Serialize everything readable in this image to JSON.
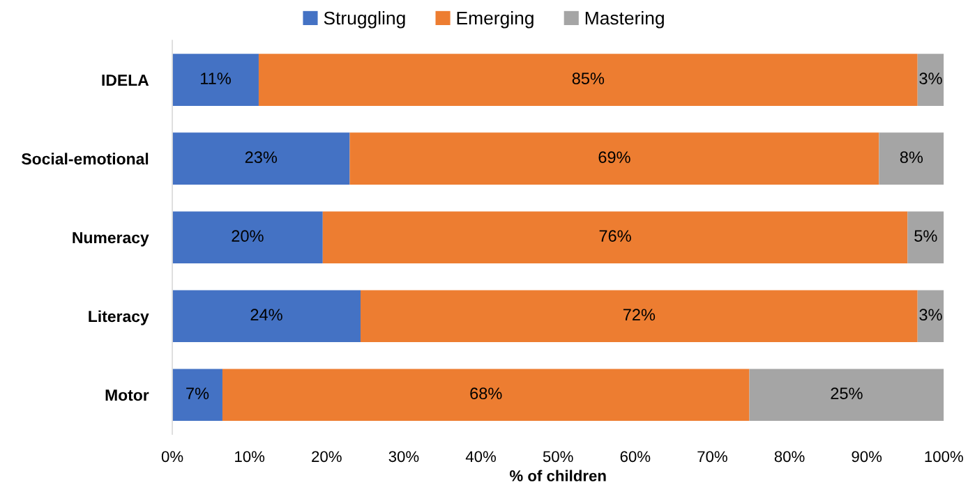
{
  "chart_data": {
    "type": "bar",
    "orientation": "horizontal",
    "stacked": true,
    "categories": [
      "IDELA",
      "Social-emotional",
      "Numeracy",
      "Literacy",
      "Motor"
    ],
    "series": [
      {
        "name": "Struggling",
        "color": "#4472c4",
        "values": [
          11.2,
          23.0,
          19.5,
          24.4,
          6.5
        ],
        "value_labels": [
          "11%",
          "23%",
          "20%",
          "24%",
          "7%"
        ]
      },
      {
        "name": "Emerging",
        "color": "#ed7d31",
        "values": [
          85.4,
          68.6,
          75.8,
          72.2,
          68.3
        ],
        "value_labels": [
          "85%",
          "69%",
          "76%",
          "72%",
          "68%"
        ]
      },
      {
        "name": "Mastering",
        "color": "#a5a5a5",
        "values": [
          3.4,
          8.4,
          4.7,
          3.4,
          25.2
        ],
        "value_labels": [
          "3%",
          "8%",
          "5%",
          "3%",
          "25%"
        ]
      }
    ],
    "xlabel": "% of children",
    "xlim": [
      0,
      100
    ],
    "xticks": [
      {
        "value": 0,
        "label": "0%"
      },
      {
        "value": 10,
        "label": "10%"
      },
      {
        "value": 20,
        "label": "20%"
      },
      {
        "value": 30,
        "label": "30%"
      },
      {
        "value": 40,
        "label": "40%"
      },
      {
        "value": 50,
        "label": "50%"
      },
      {
        "value": 60,
        "label": "60%"
      },
      {
        "value": 70,
        "label": "70%"
      },
      {
        "value": 80,
        "label": "80%"
      },
      {
        "value": 90,
        "label": "90%"
      },
      {
        "value": 100,
        "label": "100%"
      }
    ],
    "grid": false,
    "legend": "top"
  }
}
